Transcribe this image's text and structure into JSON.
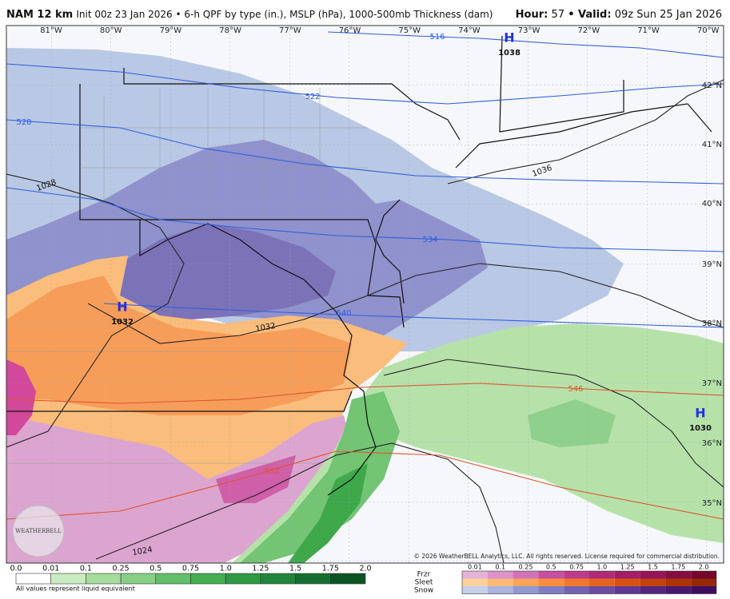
{
  "header": {
    "title": "NAM 12 km",
    "subtitle": "Init 00z 23 Jan 2026 • 6-h QPF by type (in.), MSLP (hPa), 1000-500mb Thickness (dam)",
    "hour_label": "Hour:",
    "hour": "57",
    "valid_label": "• Valid:",
    "valid": "09z Sun 25 Jan 2026"
  },
  "map": {
    "longitudes": [
      "81°W",
      "80°W",
      "79°W",
      "78°W",
      "77°W",
      "76°W",
      "75°W",
      "74°W",
      "73°W",
      "72°W",
      "71°W",
      "70°W"
    ],
    "latitudes": [
      "42°N",
      "41°N",
      "40°N",
      "39°N",
      "38°N",
      "37°N",
      "36°N",
      "35°N"
    ],
    "highs": [
      {
        "symbol": "H",
        "pressure": "1038"
      },
      {
        "symbol": "H",
        "pressure": "1032"
      },
      {
        "symbol": "H",
        "pressure": "1030"
      }
    ],
    "isobar_labels": [
      "1028",
      "1032",
      "1036",
      "1024"
    ],
    "thickness_labels": [
      "516",
      "522",
      "528",
      "534",
      "540",
      "546",
      "552"
    ],
    "logo": "WEATHERBELL",
    "copyright": "© 2026 WeatherBELL Analytics, LLC. All rights reserved. License required for commercial distribution."
  },
  "rain_scale": {
    "ticks": [
      "0.0",
      "0.01",
      "0.1",
      "0.25",
      "0.5",
      "0.75",
      "1.0",
      "1.25",
      "1.5",
      "1.75",
      "2.0"
    ],
    "note": "All values represent liquid equivalent"
  },
  "mixed_scale": {
    "types": [
      "Frzr",
      "Sleet",
      "Snow"
    ],
    "ticks": [
      "0.01",
      "0.1",
      "0.25",
      "0.5",
      "0.75",
      "1.0",
      "1.25",
      "1.5",
      "1.75",
      "2.0"
    ]
  }
}
